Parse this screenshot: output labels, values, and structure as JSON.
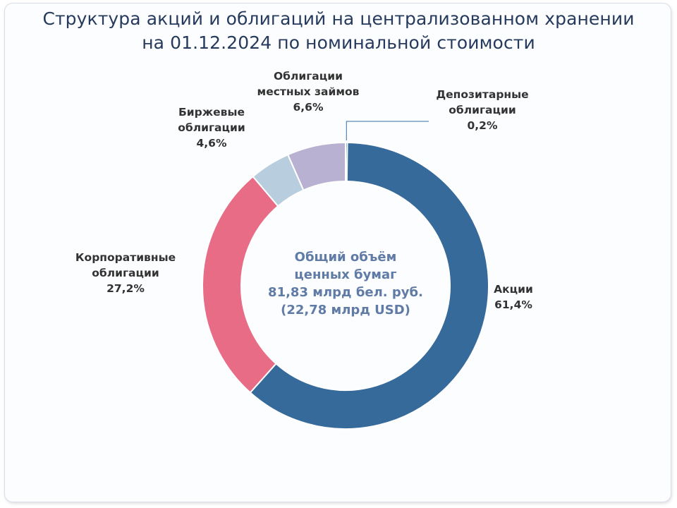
{
  "title": {
    "line1": "Структура акций и облигаций на централизованном хранении",
    "line2": "на 01.12.2024 по номинальной стоимости"
  },
  "center": {
    "line1": "Общий объём",
    "line2": "ценных бумаг",
    "line3": "81,83 млрд бел. руб.",
    "line4": "(22,78 млрд USD)"
  },
  "chart_data": {
    "type": "pie",
    "donut": true,
    "title": "Структура акций и облигаций на централизованном хранении на 01.12.2024 по номинальной стоимости",
    "slices": [
      {
        "label_lines": [
          "Депозитарные",
          "облигации"
        ],
        "percent_text": "0,2%",
        "value": 0.2,
        "color": "#2f6ea3"
      },
      {
        "label_lines": [
          "Акции"
        ],
        "percent_text": "61,4%",
        "value": 61.4,
        "color": "#356a9b"
      },
      {
        "label_lines": [
          "Корпоративные",
          "облигации"
        ],
        "percent_text": "27,2%",
        "value": 27.2,
        "color": "#e86c85"
      },
      {
        "label_lines": [
          "Биржевые",
          "облигации"
        ],
        "percent_text": "4,6%",
        "value": 4.6,
        "color": "#b8cede"
      },
      {
        "label_lines": [
          "Облигации",
          "местных займов"
        ],
        "percent_text": "6,6%",
        "value": 6.6,
        "color": "#b8b1d1"
      }
    ],
    "legend": "none"
  }
}
